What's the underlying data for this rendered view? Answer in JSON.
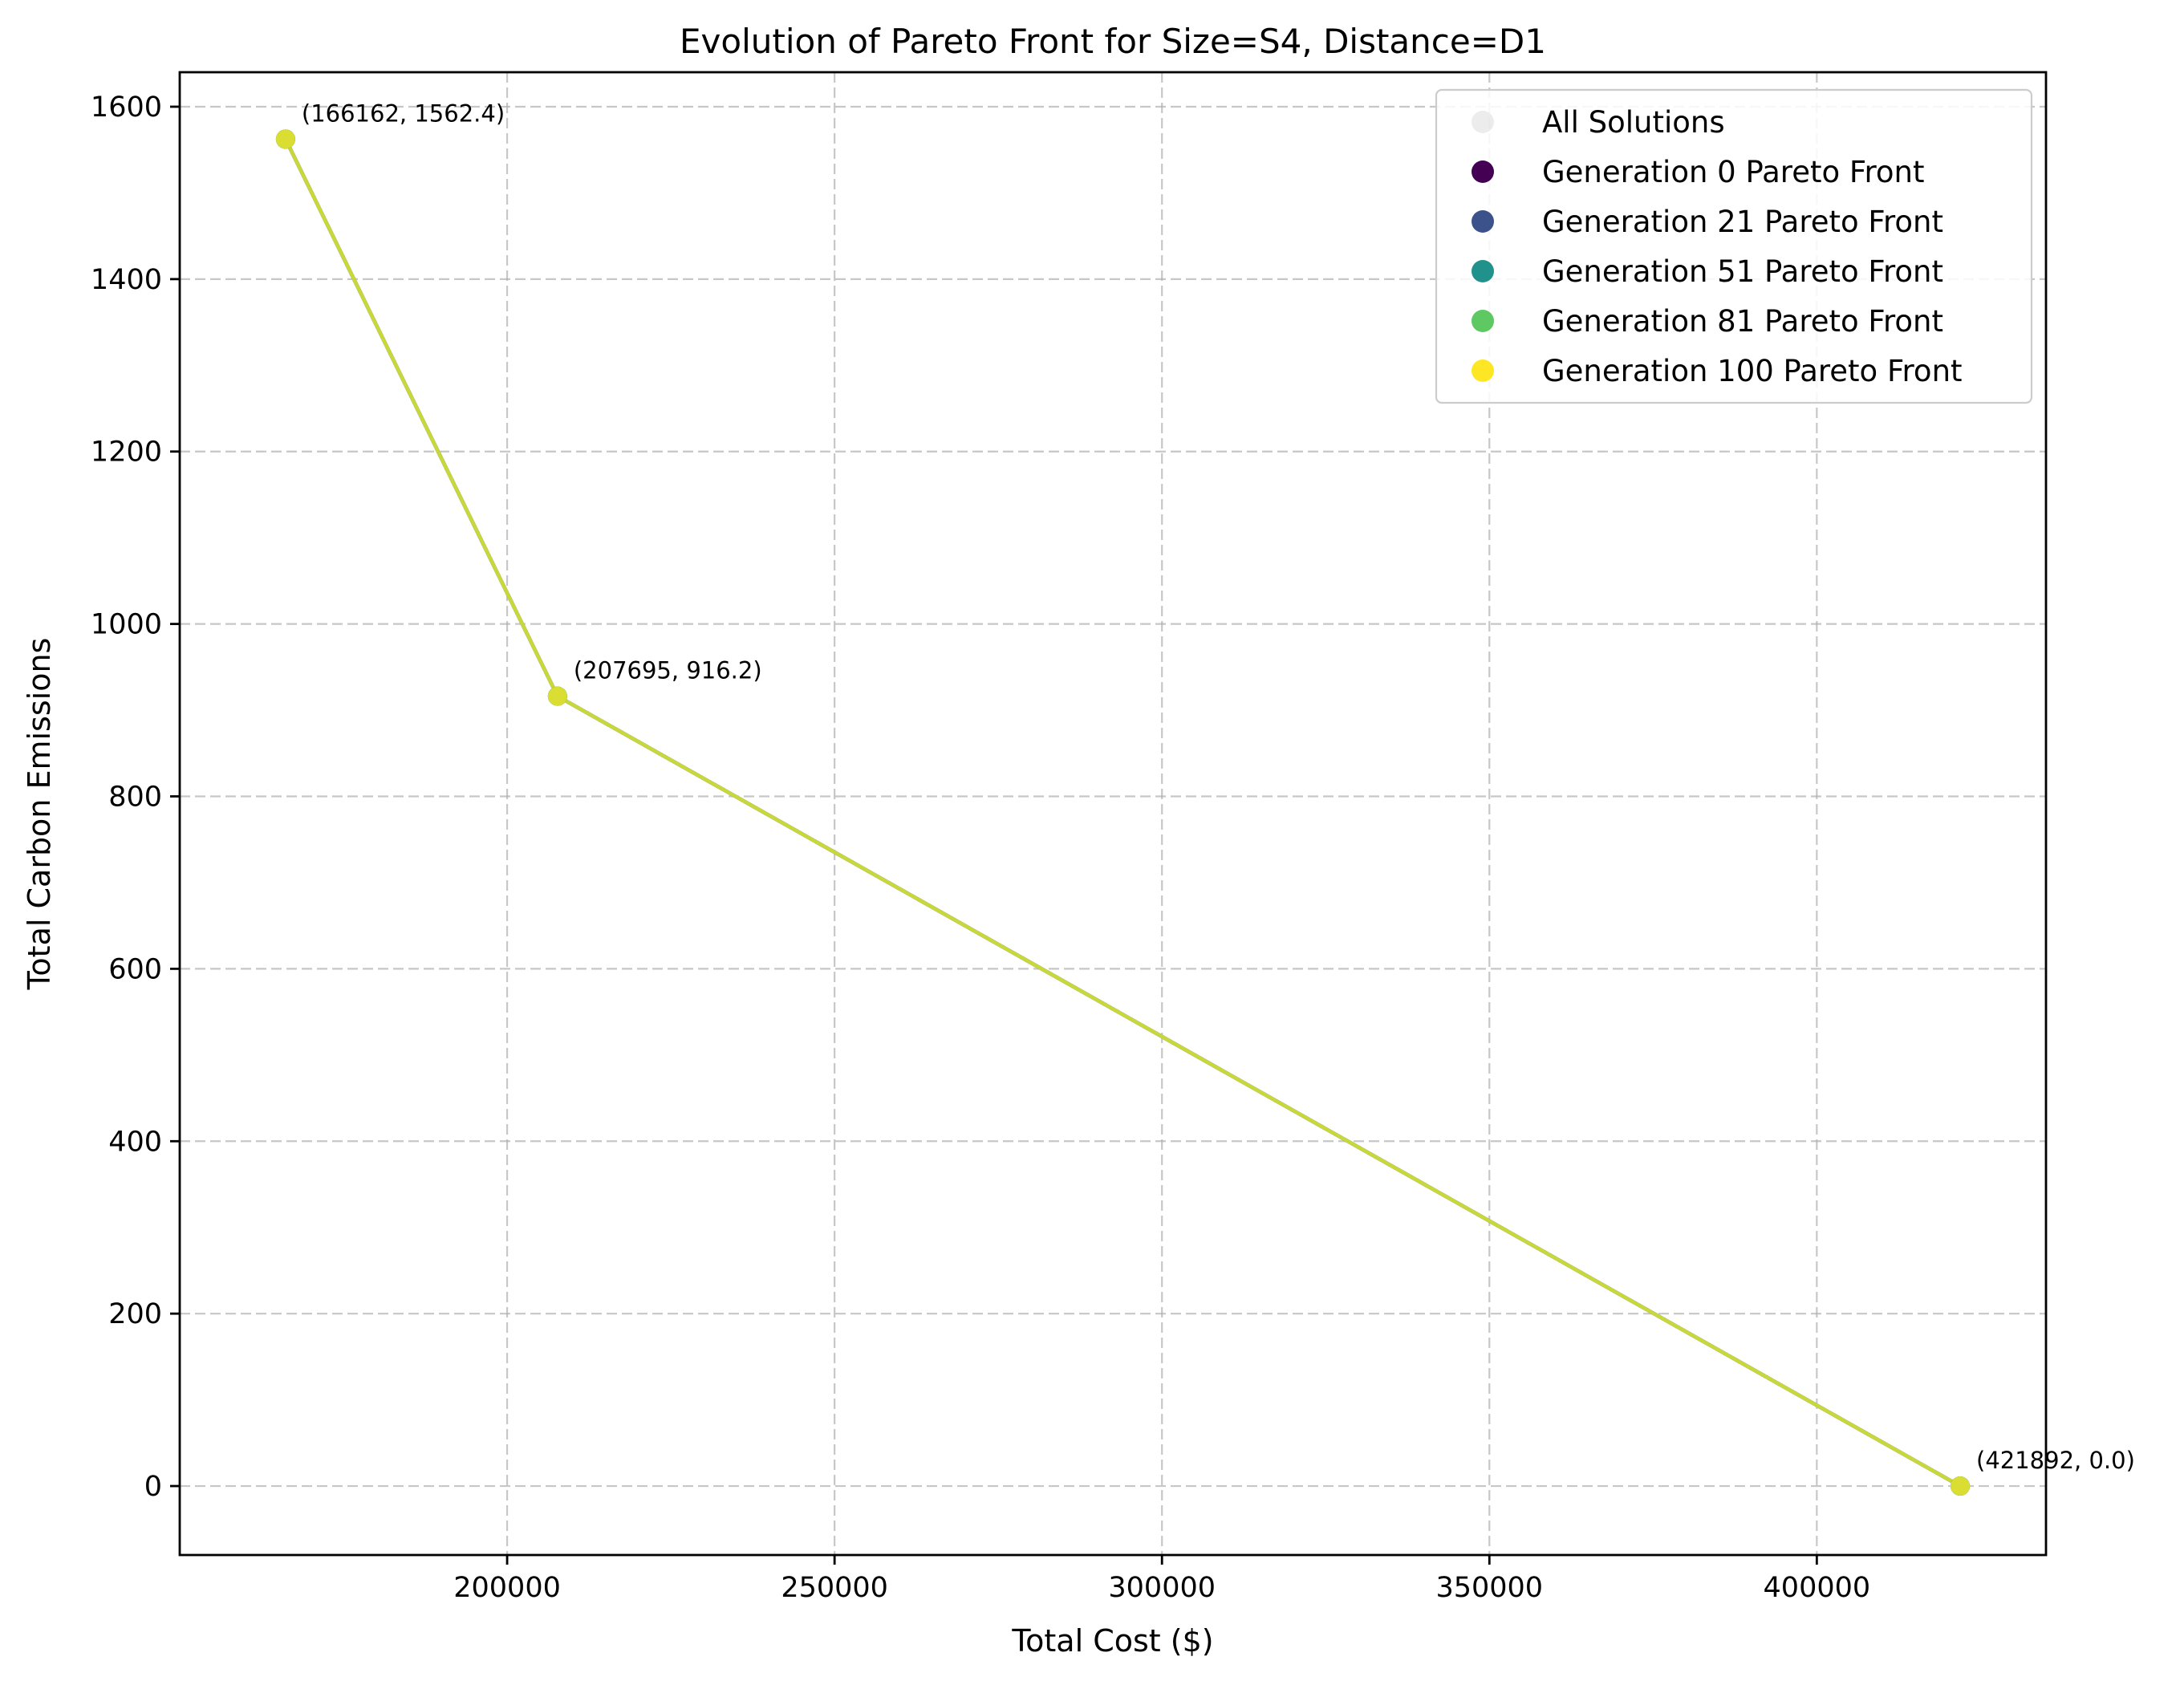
{
  "chart_data": {
    "type": "scatter",
    "title": "Evolution of Pareto Front for Size=S4, Distance=D1",
    "xlabel": "Total Cost ($)",
    "ylabel": "Total Carbon Emissions",
    "xlim": [
      150000,
      435000
    ],
    "ylim": [
      -80,
      1640
    ],
    "xticks": [
      200000,
      250000,
      300000,
      350000,
      400000
    ],
    "xtick_labels": [
      "200000",
      "250000",
      "300000",
      "350000",
      "400000"
    ],
    "yticks": [
      0,
      200,
      400,
      600,
      800,
      1000,
      1200,
      1400,
      1600
    ],
    "ytick_labels": [
      "0",
      "200",
      "400",
      "600",
      "800",
      "1000",
      "1200",
      "1400",
      "1600"
    ],
    "grid": true,
    "legend_position": "top-right",
    "series": [
      {
        "name": "All Solutions",
        "color": "#d9d9d9",
        "opacity": 0.5,
        "points": []
      },
      {
        "name": "Generation 0 Pareto Front",
        "color": "#440154",
        "points": [
          [
            166162,
            1562.4
          ],
          [
            207695,
            916.2
          ],
          [
            421892,
            0.0
          ]
        ]
      },
      {
        "name": "Generation 21 Pareto Front",
        "color": "#3b528b",
        "points": [
          [
            166162,
            1562.4
          ],
          [
            207695,
            916.2
          ],
          [
            421892,
            0.0
          ]
        ]
      },
      {
        "name": "Generation 51 Pareto Front",
        "color": "#21918c",
        "points": [
          [
            166162,
            1562.4
          ],
          [
            207695,
            916.2
          ],
          [
            421892,
            0.0
          ]
        ]
      },
      {
        "name": "Generation 81 Pareto Front",
        "color": "#5ec962",
        "points": [
          [
            166162,
            1562.4
          ],
          [
            207695,
            916.2
          ],
          [
            421892,
            0.0
          ]
        ]
      },
      {
        "name": "Generation 100 Pareto Front",
        "color": "#fde725",
        "points": [
          [
            166162,
            1562.4
          ],
          [
            207695,
            916.2
          ],
          [
            421892,
            0.0
          ]
        ]
      }
    ],
    "annotations": [
      {
        "text": "(166162, 1562.4)",
        "x": 166162,
        "y": 1562.4
      },
      {
        "text": "(207695, 916.2)",
        "x": 207695,
        "y": 916.2
      },
      {
        "text": "(421892, 0.0)",
        "x": 421892,
        "y": 0.0
      }
    ]
  }
}
